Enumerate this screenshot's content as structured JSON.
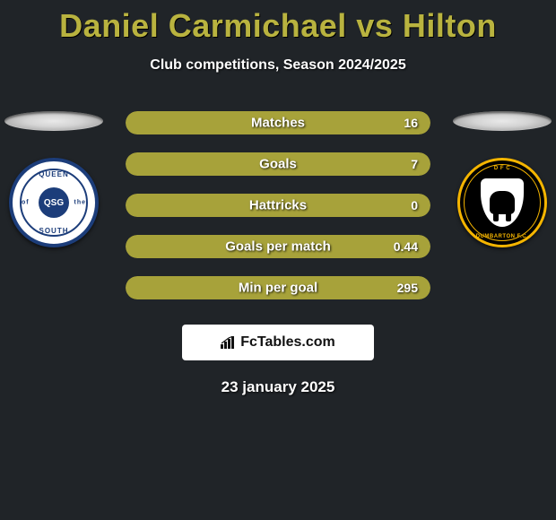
{
  "title": "Daniel Carmichael vs Hilton",
  "subtitle": "Club competitions, Season 2024/2025",
  "date": "23 january 2025",
  "brand": "FcTables.com",
  "colors": {
    "accent": "#b9b33f",
    "bar_primary": "#a7a23a",
    "bar_secondary": "#8f8a30",
    "text": "#ffffff",
    "background": "#202428"
  },
  "left_club": {
    "name": "Queen of the South",
    "short": "QSG",
    "arc_top": "QUEEN",
    "arc_bottom": "SOUTH",
    "arc_left": "of",
    "arc_right": "the"
  },
  "right_club": {
    "name": "Dumbarton FC",
    "arc_top": "D F C",
    "arc_bottom": "DUMBARTON F.C."
  },
  "stats": [
    {
      "label": "Matches",
      "value": "16",
      "fill_pct": 100,
      "side": "full"
    },
    {
      "label": "Goals",
      "value": "7",
      "fill_pct": 100,
      "side": "full"
    },
    {
      "label": "Hattricks",
      "value": "0",
      "fill_pct": 100,
      "side": "full"
    },
    {
      "label": "Goals per match",
      "value": "0.44",
      "fill_pct": 100,
      "side": "full"
    },
    {
      "label": "Min per goal",
      "value": "295",
      "fill_pct": 100,
      "side": "full"
    }
  ]
}
